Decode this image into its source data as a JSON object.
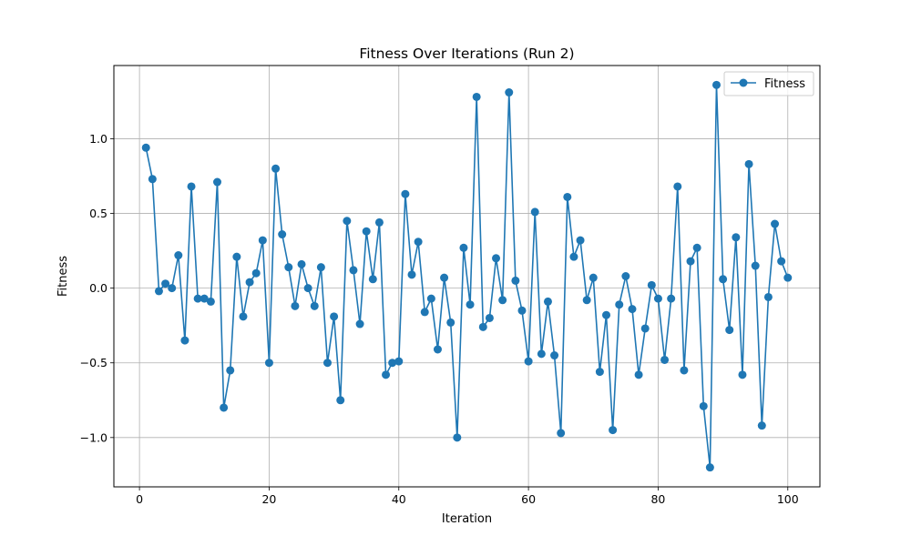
{
  "chart_data": {
    "type": "line",
    "title": "Fitness Over Iterations (Run 2)",
    "xlabel": "Iteration",
    "ylabel": "Fitness",
    "xlim": [
      -3.95,
      104.95
    ],
    "ylim": [
      -1.33,
      1.49
    ],
    "xticks": [
      0,
      20,
      40,
      60,
      80,
      100
    ],
    "xtick_labels": [
      "0",
      "20",
      "40",
      "60",
      "80",
      "100"
    ],
    "yticks": [
      -1.0,
      -0.5,
      0.0,
      0.5,
      1.0
    ],
    "ytick_labels": [
      "−1.0",
      "−0.5",
      "0.0",
      "0.5",
      "1.0"
    ],
    "grid": true,
    "legend_position": "upper right",
    "color": "#1f77b4",
    "series": [
      {
        "name": "Fitness",
        "marker": "circle",
        "x": [
          1,
          2,
          3,
          4,
          5,
          6,
          7,
          8,
          9,
          10,
          11,
          12,
          13,
          14,
          15,
          16,
          17,
          18,
          19,
          20,
          21,
          22,
          23,
          24,
          25,
          26,
          27,
          28,
          29,
          30,
          31,
          32,
          33,
          34,
          35,
          36,
          37,
          38,
          39,
          40,
          41,
          42,
          43,
          44,
          45,
          46,
          47,
          48,
          49,
          50,
          51,
          52,
          53,
          54,
          55,
          56,
          57,
          58,
          59,
          60,
          61,
          62,
          63,
          64,
          65,
          66,
          67,
          68,
          69,
          70,
          71,
          72,
          73,
          74,
          75,
          76,
          77,
          78,
          79,
          80,
          81,
          82,
          83,
          84,
          85,
          86,
          87,
          88,
          89,
          90,
          91,
          92,
          93,
          94,
          95,
          96,
          97,
          98,
          99,
          100
        ],
        "y": [
          0.94,
          0.73,
          -0.02,
          0.03,
          0.0,
          0.22,
          -0.35,
          0.68,
          -0.07,
          -0.07,
          -0.09,
          0.71,
          -0.8,
          -0.55,
          0.21,
          -0.19,
          0.04,
          0.1,
          0.32,
          -0.5,
          0.8,
          0.36,
          0.14,
          -0.12,
          0.16,
          0.0,
          -0.12,
          0.14,
          -0.5,
          -0.19,
          -0.75,
          0.45,
          0.12,
          -0.24,
          0.38,
          0.06,
          0.44,
          -0.58,
          -0.5,
          -0.49,
          0.63,
          0.09,
          0.31,
          -0.16,
          -0.07,
          -0.41,
          0.07,
          -0.23,
          -1.0,
          0.27,
          -0.11,
          1.28,
          -0.26,
          -0.2,
          0.2,
          -0.08,
          1.31,
          0.05,
          -0.15,
          -0.49,
          0.51,
          -0.44,
          -0.09,
          -0.45,
          -0.97,
          0.61,
          0.21,
          0.32,
          -0.08,
          0.07,
          -0.56,
          -0.18,
          -0.95,
          -0.11,
          0.08,
          -0.14,
          -0.58,
          -0.27,
          0.02,
          -0.07,
          -0.48,
          -0.07,
          0.68,
          -0.55,
          0.18,
          0.27,
          -0.79,
          -1.2,
          1.36,
          0.06,
          -0.28,
          0.34,
          -0.58,
          0.83,
          0.15,
          -0.92,
          -0.06,
          0.43,
          0.18,
          0.07
        ]
      }
    ]
  }
}
